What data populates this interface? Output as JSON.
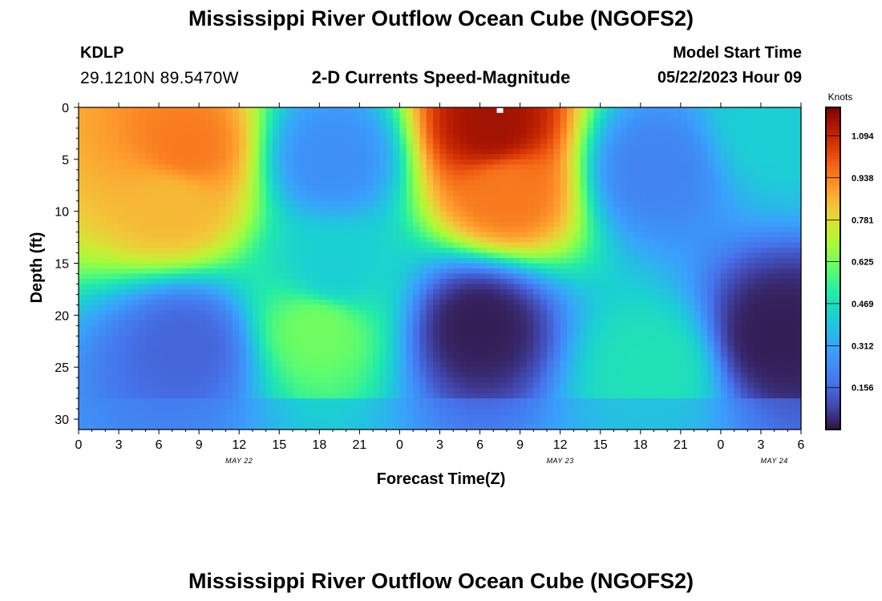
{
  "page": {
    "top_title": "Mississippi River Outflow Ocean Cube (NGOFS2)",
    "bottom_title": "Mississippi River Outflow Ocean Cube (NGOFS2)",
    "station_id": "KDLP",
    "coordinates": "29.1210N  89.5470W",
    "subtitle": "2-D Currents Speed-Magnitude",
    "model_start_label": "Model Start Time",
    "model_start_value": "05/22/2023 Hour 09"
  },
  "chart_data": {
    "type": "heatmap",
    "title": "2-D Currents Speed-Magnitude",
    "xlabel": "Forecast Time(Z)",
    "ylabel": "Depth (ft)",
    "x_ticks": [
      "0",
      "3",
      "6",
      "9",
      "12",
      "15",
      "18",
      "21",
      "0",
      "3",
      "6",
      "9",
      "12",
      "15",
      "18",
      "21",
      "0",
      "3",
      "6"
    ],
    "x_date_labels": [
      {
        "label": "MAY 22",
        "hour": 12
      },
      {
        "label": "MAY 23",
        "hour": 36
      },
      {
        "label": "MAY 24",
        "hour": 52
      }
    ],
    "xlim_hours": [
      0,
      54
    ],
    "y_ticks": [
      "0",
      "5",
      "10",
      "15",
      "20",
      "25",
      "30"
    ],
    "ylim_ft": [
      0,
      31
    ],
    "y_inverted": true,
    "colorbar": {
      "title": "Knots",
      "tick_labels": [
        "1.094",
        "0.938",
        "0.781",
        "0.625",
        "0.469",
        "0.312",
        "0.156"
      ],
      "tick_values": [
        1.094,
        0.938,
        0.781,
        0.625,
        0.469,
        0.312,
        0.156
      ],
      "range": [
        0,
        1.2
      ]
    },
    "marker": {
      "hour": 31.5,
      "depth": 0.3,
      "color": "#ffffff"
    },
    "field_features": [
      {
        "hour": 8,
        "depth": 4,
        "value": 0.95
      },
      {
        "hour": 7,
        "depth": 9,
        "value": 0.85
      },
      {
        "hour": 8,
        "depth": 23,
        "value": 0.15
      },
      {
        "hour": 18,
        "depth": 21,
        "value": 0.62
      },
      {
        "hour": 19,
        "depth": 16,
        "value": 0.42
      },
      {
        "hour": 19,
        "depth": 5,
        "value": 0.25
      },
      {
        "hour": 31,
        "depth": 2,
        "value": 1.15
      },
      {
        "hour": 32,
        "depth": 8,
        "value": 0.95
      },
      {
        "hour": 30,
        "depth": 21,
        "value": 0.02
      },
      {
        "hour": 43,
        "depth": 25,
        "value": 0.48
      },
      {
        "hour": 43,
        "depth": 6,
        "value": 0.22
      },
      {
        "hour": 52,
        "depth": 2,
        "value": 0.42
      },
      {
        "hour": 52,
        "depth": 22,
        "value": 0.02
      }
    ]
  }
}
